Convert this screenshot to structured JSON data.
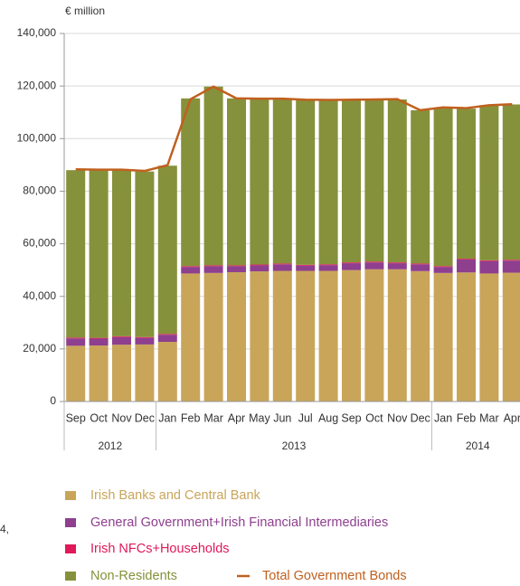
{
  "chart_data": {
    "type": "stacked_bar_line",
    "y_axis_label": "€ million",
    "side_text": "4,",
    "categories": [
      "Sep",
      "Oct",
      "Nov",
      "Dec",
      "Jan",
      "Feb",
      "Mar",
      "Apr",
      "May",
      "Jun",
      "Jul",
      "Aug",
      "Sep",
      "Oct",
      "Nov",
      "Dec",
      "Jan",
      "Feb",
      "Mar",
      "Apr"
    ],
    "category_years": [
      "2012",
      "2012",
      "2012",
      "2012",
      "2013",
      "2013",
      "2013",
      "2013",
      "2013",
      "2013",
      "2013",
      "2013",
      "2013",
      "2013",
      "2013",
      "2013",
      "2014",
      "2014",
      "2014",
      "2014"
    ],
    "ylim": [
      0,
      140000
    ],
    "yticks": [
      0,
      {
        "value": 20000,
        "label": "20,000"
      },
      {
        "value": 40000,
        "label": "40,000"
      },
      {
        "value": 60000,
        "label": "60,000"
      },
      {
        "value": 80000,
        "label": "80,000"
      },
      {
        "value": 100000,
        "label": "100,000"
      },
      {
        "value": 120000,
        "label": "120,000"
      },
      {
        "value": 140000,
        "label": "140,000"
      }
    ],
    "grid": true,
    "series": [
      {
        "name": "Irish Banks and Central Bank",
        "color": "#c9a55a",
        "kind": "bar",
        "values": [
          21200,
          21300,
          21600,
          21700,
          22700,
          48700,
          48900,
          49200,
          49500,
          49700,
          49700,
          49700,
          50000,
          50300,
          50300,
          49600,
          48900,
          49100,
          48700,
          49000
        ]
      },
      {
        "name": "General Government+Irish Financial Intermediaries",
        "color": "#8e3f8e",
        "kind": "bar",
        "values": [
          2800,
          2600,
          2900,
          2500,
          2700,
          2500,
          2600,
          2300,
          2300,
          2500,
          2000,
          2200,
          2600,
          2600,
          2300,
          2600,
          2300,
          4900,
          4700,
          4600
        ]
      },
      {
        "name": "Irish NFCs+Households",
        "color": "#e0195a",
        "kind": "bar",
        "values": [
          300,
          300,
          300,
          300,
          300,
          300,
          300,
          300,
          300,
          300,
          300,
          300,
          300,
          300,
          300,
          300,
          300,
          300,
          300,
          300
        ]
      },
      {
        "name": "Non-Residents",
        "color": "#86913b",
        "kind": "bar",
        "values": [
          63700,
          63700,
          63200,
          63000,
          64000,
          63800,
          68000,
          63500,
          63100,
          62700,
          62800,
          62500,
          61700,
          61600,
          62000,
          58300,
          60100,
          57100,
          59000,
          59100
        ]
      },
      {
        "name": "Total Government Bonds",
        "color": "#c0601e",
        "kind": "line",
        "values": [
          88300,
          88200,
          88200,
          87700,
          89900,
          115000,
          119800,
          115300,
          115200,
          115200,
          114800,
          114700,
          114800,
          114900,
          115000,
          110800,
          111900,
          111600,
          112700,
          113100
        ]
      }
    ]
  }
}
